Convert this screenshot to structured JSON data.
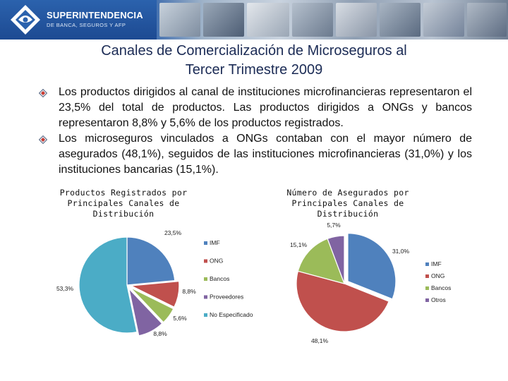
{
  "header": {
    "logo_line1": "SUPERINTENDENCIA",
    "logo_line2": "DE BANCA, SEGUROS Y AFP"
  },
  "title": {
    "line1": "Canales de Comercialización de Microseguros al",
    "line2": "Tercer Trimestre 2009"
  },
  "bullets": [
    "Los productos dirigidos al canal de instituciones microfinancieras representaron el 23,5% del total de productos. Las productos dirigidos a ONGs y bancos representaron 8,8% y 5,6% de los productos registrados.",
    "Los microseguros vinculados a ONGs contaban con el mayor número de asegurados (48,1%), seguidos de las instituciones microfinancieras (31,0%) y los instituciones bancarias (15,1%)."
  ],
  "colors": {
    "title": "#1b2b55",
    "blue": "#4f81bd",
    "red": "#c0504d",
    "green": "#9bbb59",
    "purple": "#8064a2",
    "aqua": "#4bacc6"
  },
  "chart_data": [
    {
      "type": "pie",
      "title_lines": [
        "Productos Registrados por",
        "Principales Canales de",
        "Distribución"
      ],
      "categories": [
        "IMF",
        "ONG",
        "Bancos",
        "Proveedores",
        "No Especificado"
      ],
      "values": [
        23.5,
        8.8,
        5.6,
        8.8,
        53.3
      ],
      "labels": [
        "23,5%",
        "8,8%",
        "5,6%",
        "8,8%",
        "53,3%"
      ],
      "colors": [
        "#4f81bd",
        "#c0504d",
        "#9bbb59",
        "#8064a2",
        "#4bacc6"
      ],
      "legend_position": "right"
    },
    {
      "type": "pie",
      "title_lines": [
        "Número de Asegurados por",
        "Principales Canales de",
        "Distribución"
      ],
      "categories": [
        "IMF",
        "ONG",
        "Bancos",
        "Otros"
      ],
      "values": [
        31.0,
        48.1,
        15.1,
        5.7
      ],
      "labels": [
        "31,0%",
        "48,1%",
        "15,1%",
        "5,7%"
      ],
      "colors": [
        "#4f81bd",
        "#c0504d",
        "#9bbb59",
        "#8064a2"
      ],
      "legend_position": "right"
    }
  ]
}
